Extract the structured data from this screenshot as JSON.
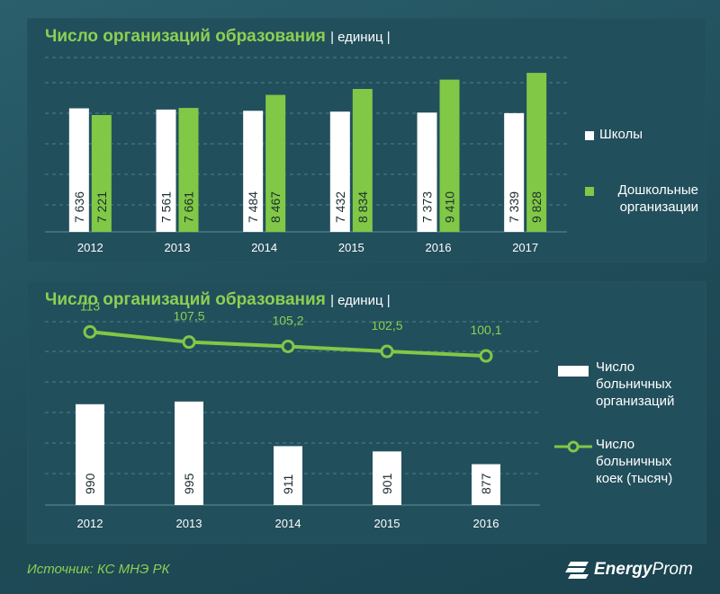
{
  "chart_data": [
    {
      "type": "bar",
      "title": "Число организаций образования",
      "unit": "единиц",
      "categories": [
        "2012",
        "2013",
        "2014",
        "2015",
        "2016",
        "2017"
      ],
      "series": [
        {
          "name": "Школы",
          "color": "#ffffff",
          "values": [
            7636,
            7561,
            7484,
            7432,
            7373,
            7339
          ],
          "labels": [
            "7 636",
            "7 561",
            "7 484",
            "7 432",
            "7 373",
            "7 339"
          ]
        },
        {
          "name": "Дошкольные организации",
          "color": "#80c846",
          "values": [
            7221,
            7661,
            8467,
            8834,
            9410,
            9828
          ],
          "labels": [
            "7 221",
            "7 661",
            "8 467",
            "8 834",
            "9 410",
            "9 828"
          ]
        }
      ],
      "ylim": [
        0,
        11000
      ],
      "grid": true,
      "legend_position": "right"
    },
    {
      "type": "bar",
      "title": "Число организаций образования",
      "unit": "единиц",
      "categories": [
        "2012",
        "2013",
        "2014",
        "2015",
        "2016"
      ],
      "series": [
        {
          "name": "Число больничных организаций",
          "color": "#ffffff",
          "kind": "bar",
          "values": [
            990,
            995,
            911,
            901,
            877
          ],
          "labels": [
            "990",
            "995",
            "911",
            "901",
            "877"
          ]
        },
        {
          "name": "Число больничных коек (тысяч)",
          "color": "#80c846",
          "kind": "line",
          "values": [
            113,
            107.5,
            105.2,
            102.5,
            100.1
          ],
          "labels": [
            "113",
            "107,5",
            "105,2",
            "102,5",
            "100,1"
          ]
        }
      ],
      "ylim_bar": [
        800,
        1010
      ],
      "ylim_line": [
        20,
        117
      ],
      "grid": true,
      "legend_position": "right"
    }
  ],
  "footer": {
    "source": "Источник: КС МНЭ РК",
    "logo_bold": "Energy",
    "logo_light": "Prom"
  }
}
